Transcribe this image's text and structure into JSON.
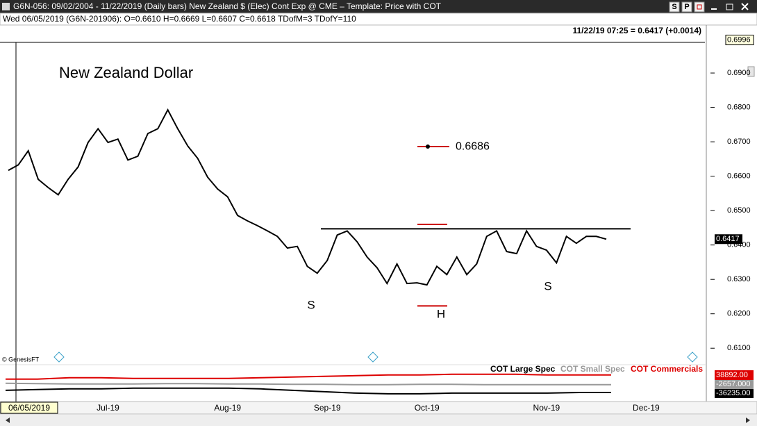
{
  "window": {
    "title": "G6N-056:  09/02/2004 - 11/22/2019  (Daily bars)   New Zealand $ (Elec) Cont Exp @ CME  –  Template: Price with COT",
    "buttons": [
      "S",
      "P"
    ],
    "info": "Wed  06/05/2019 (G6N-201906):  O=0.6610  H=0.6669  L=0.6607  C=0.6618  TDofM=3  TDofY=110",
    "quote": "11/22/19 07:25 = 0.6417 (+0.0014)",
    "copyright": "© GenesisFT"
  },
  "chart_data": [
    {
      "type": "line",
      "title": "New Zealand Dollar",
      "color": "#000000",
      "categories": [
        "06/05/2019",
        null,
        null,
        null,
        null,
        null,
        null,
        null,
        null,
        null,
        "Jul-19",
        null,
        null,
        null,
        null,
        null,
        null,
        null,
        null,
        null,
        null,
        null,
        "Aug-19",
        null,
        null,
        null,
        null,
        null,
        null,
        null,
        null,
        null,
        "Sep-19",
        null,
        null,
        null,
        null,
        null,
        null,
        null,
        null,
        null,
        "Oct-19",
        null,
        null,
        null,
        null,
        null,
        null,
        null,
        null,
        null,
        null,
        null,
        "Nov-19",
        null,
        null,
        null,
        null,
        null,
        null,
        null,
        null,
        null,
        "Dec-19",
        null,
        null,
        null,
        null,
        null,
        null
      ],
      "values": [
        0.6617,
        0.6633,
        0.6674,
        0.6591,
        0.6567,
        0.6546,
        0.6591,
        0.6627,
        0.6698,
        0.6738,
        0.6698,
        0.6708,
        0.6647,
        0.6658,
        0.6724,
        0.6738,
        0.6793,
        0.6738,
        0.6688,
        0.6652,
        0.6597,
        0.6563,
        0.654,
        0.6486,
        0.647,
        0.6456,
        0.6441,
        0.6425,
        0.6391,
        0.6396,
        0.6338,
        0.6318,
        0.6355,
        0.6429,
        0.6441,
        0.6409,
        0.6365,
        0.6334,
        0.6288,
        0.6345,
        0.6288,
        0.629,
        0.6284,
        0.6338,
        0.6314,
        0.6365,
        0.6314,
        0.6345,
        0.6425,
        0.6441,
        0.6381,
        0.6375,
        0.6441,
        0.6396,
        0.6385,
        0.6348,
        0.6425,
        0.6405,
        0.6425,
        0.6425,
        0.6417,
        null,
        null,
        null,
        null,
        null,
        null,
        null,
        null,
        null,
        null
      ],
      "ylim": [
        0.6052,
        0.6987
      ],
      "yticks": [
        {
          "value": 0.61,
          "label": "0.6100"
        },
        {
          "value": 0.62,
          "label": "0.6200"
        },
        {
          "value": 0.63,
          "label": "0.6300"
        },
        {
          "value": 0.64,
          "label": "0.6400"
        },
        {
          "value": 0.65,
          "label": "0.6500"
        },
        {
          "value": 0.66,
          "label": "0.6600"
        },
        {
          "value": 0.67,
          "label": "0.6700"
        },
        {
          "value": 0.68,
          "label": "0.6800"
        },
        {
          "value": 0.69,
          "label": "0.6900"
        }
      ],
      "top_value": 0.6996,
      "last_value": 0.6417,
      "neckline": 0.6447,
      "target": 0.6686,
      "target_color": "#cc0000",
      "markers": [
        0.646,
        0.6223
      ],
      "annotations": [
        "S",
        "H",
        "S"
      ]
    },
    {
      "type": "line",
      "ylim": [
        -75000,
        68000
      ],
      "series": [
        {
          "name": "COT Large Spec",
          "color": "#000000",
          "values": [
            -26900,
            -23900,
            -20900,
            -20900,
            -17900,
            -17900,
            -17900,
            -17900,
            -20900,
            -26900,
            -32900,
            -38900,
            -41900,
            -41900,
            -38900,
            -38900,
            -38900,
            -38900,
            -36235,
            -36235
          ],
          "value_labels": [
            null,
            null,
            null,
            null,
            null,
            null,
            null,
            null,
            null,
            null,
            null,
            null,
            null,
            null,
            null,
            null,
            null,
            null,
            null,
            "-36235.00"
          ]
        },
        {
          "name": "COT Small Spec",
          "color": "#999999",
          "values": [
            3000,
            1500,
            0,
            0,
            0,
            1500,
            1500,
            0,
            0,
            -1500,
            -1500,
            -3000,
            -3000,
            -1500,
            -1500,
            -3000,
            -3000,
            -3000,
            -2657,
            -2657
          ],
          "value_labels": [
            null,
            null,
            null,
            null,
            null,
            null,
            null,
            null,
            null,
            null,
            null,
            null,
            null,
            null,
            null,
            null,
            null,
            null,
            null,
            "-2657.000"
          ]
        },
        {
          "name": "COT Commercials",
          "color": "#dd0000",
          "values": [
            20900,
            20900,
            26900,
            26900,
            23900,
            23900,
            23900,
            23900,
            26900,
            29900,
            32900,
            35900,
            38900,
            38900,
            41900,
            41900,
            41900,
            38900,
            38892,
            38892
          ],
          "value_labels": [
            null,
            null,
            null,
            null,
            null,
            null,
            null,
            null,
            null,
            null,
            null,
            null,
            null,
            null,
            null,
            null,
            null,
            null,
            null,
            "38892.00"
          ]
        }
      ]
    }
  ]
}
